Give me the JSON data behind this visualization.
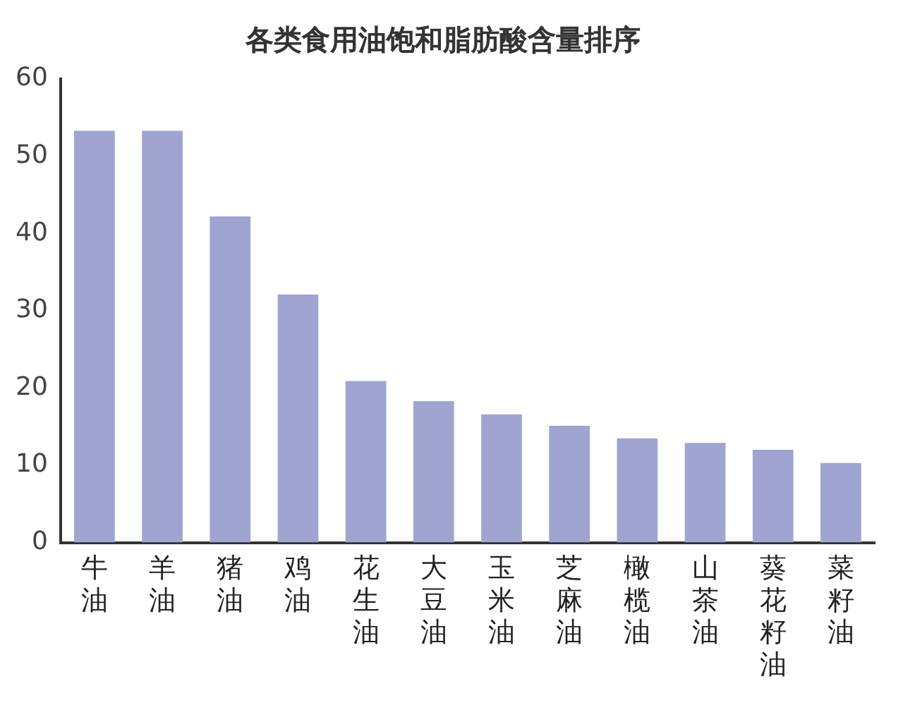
{
  "chart_data": {
    "type": "bar",
    "title": "各类食用油饱和脂肪酸含量排序",
    "categories": [
      "牛油",
      "羊油",
      "猪油",
      "鸡油",
      "花生油",
      "大豆油",
      "玉米油",
      "芝麻油",
      "橄榄油",
      "山茶油",
      "葵花籽油",
      "菜籽油"
    ],
    "values": [
      53.3,
      53.3,
      42.2,
      32.1,
      20.9,
      18.3,
      16.6,
      15.1,
      13.5,
      12.9,
      12.0,
      10.3
    ],
    "color": "#9fa5d0",
    "ylim": [
      0,
      60
    ],
    "yticks": [
      0,
      10,
      20,
      30,
      40,
      50,
      60
    ],
    "grid": false,
    "legend": false
  }
}
